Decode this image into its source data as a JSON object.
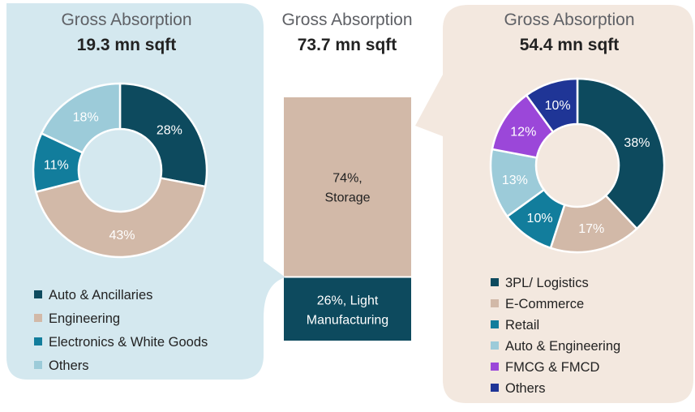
{
  "chart_data": [
    {
      "type": "pie",
      "donut": true,
      "title": "Gross Absorption",
      "subtitle": "19.3 mn sqft",
      "categories": [
        "Auto & Ancillaries",
        "Engineering",
        "Electronics & White Goods",
        "Others"
      ],
      "values": [
        28,
        43,
        11,
        18
      ],
      "data_labels": [
        "28%",
        "43%",
        "11%",
        "18%"
      ],
      "colors": [
        "#0d4a5e",
        "#d2b9a8",
        "#127d9c",
        "#9ccbd9"
      ],
      "label_colors": [
        "#ffffff",
        "#ffffff",
        "#ffffff",
        "#ffffff"
      ]
    },
    {
      "type": "bar",
      "stacked": true,
      "title": "Gross Absorption",
      "subtitle": "73.7 mn sqft",
      "categories": [
        "Storage",
        "Light Manufacturing"
      ],
      "values": [
        74,
        26
      ],
      "data_labels": [
        [
          "74%,",
          "Storage"
        ],
        [
          "26%, Light",
          "Manufacturing"
        ]
      ],
      "colors": [
        "#d2b9a8",
        "#0d4a5e"
      ],
      "label_colors": [
        "#222222",
        "#ffffff"
      ]
    },
    {
      "type": "pie",
      "donut": true,
      "title": "Gross Absorption",
      "subtitle": "54.4 mn sqft",
      "categories": [
        "3PL/ Logistics",
        "E-Commerce",
        "Retail",
        "Auto & Engineering",
        "FMCG & FMCD",
        "Others"
      ],
      "values": [
        38,
        17,
        10,
        13,
        12,
        10
      ],
      "data_labels": [
        "38%",
        "17%",
        "10%",
        "13%",
        "12%",
        "10%"
      ],
      "colors": [
        "#0d4a5e",
        "#d2b9a8",
        "#127d9c",
        "#9ccbd9",
        "#9b47d9",
        "#1f3596"
      ],
      "label_colors": [
        "#ffffff",
        "#ffffff",
        "#ffffff",
        "#ffffff",
        "#ffffff",
        "#ffffff"
      ]
    }
  ]
}
